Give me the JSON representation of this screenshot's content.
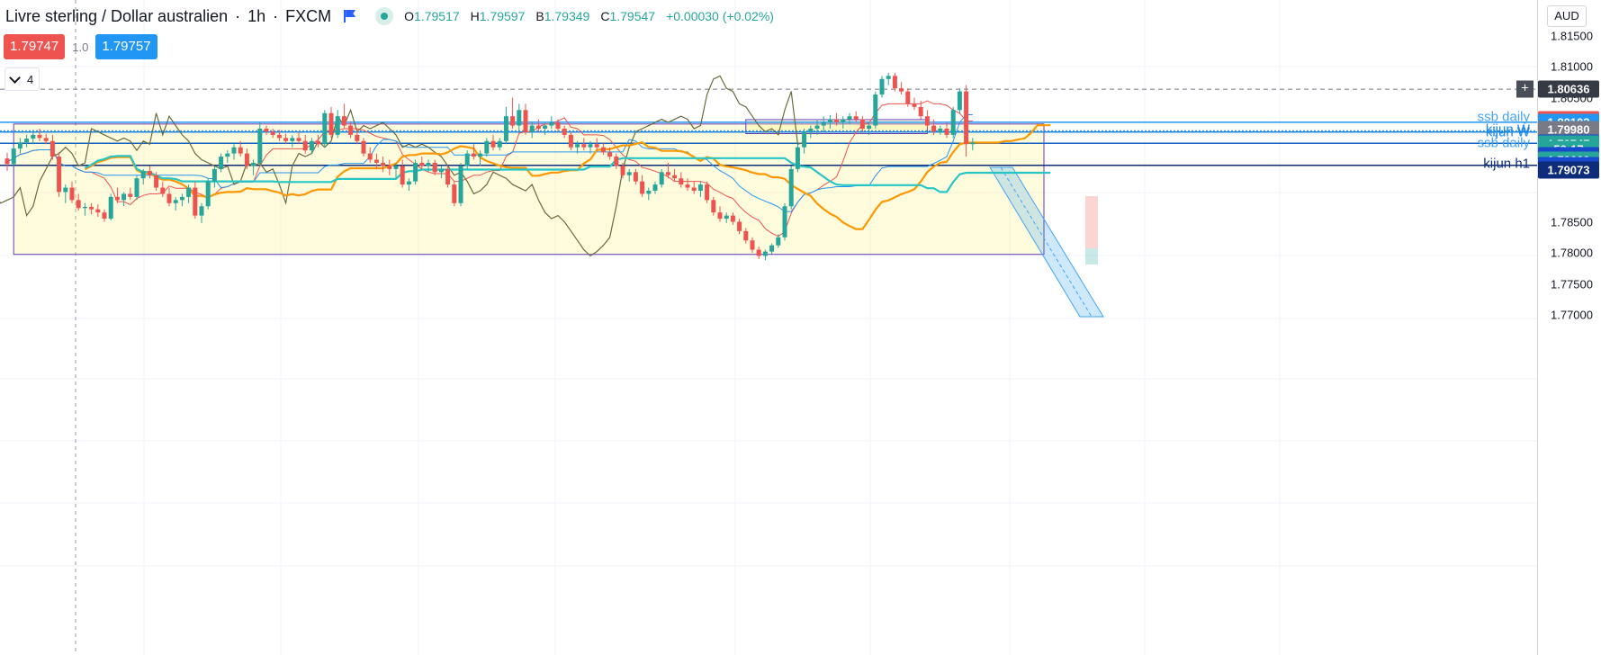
{
  "header": {
    "symbol": "Livre sterling / Dollar australien",
    "timeframe": "1h",
    "exchange": "FXCM",
    "open_label": "O",
    "open": "1.79517",
    "high_label": "H",
    "high": "1.79597",
    "low_label": "B",
    "low": "1.79349",
    "close_label": "C",
    "close": "1.79547",
    "change": "+0.00030 (+0.02%)"
  },
  "trade": {
    "sell_price": "1.79747",
    "spread": "1.0",
    "buy_price": "1.79757"
  },
  "indicators_toggle": {
    "count": "4"
  },
  "price_axis": {
    "currency": "AUD",
    "ticks": [
      "1.81500",
      "1.81000",
      "1.80500",
      "1.80000",
      "1.79500",
      "1.78500",
      "1.78000",
      "1.77500",
      "1.77000"
    ],
    "tags": [
      {
        "text": "1.80636",
        "price": 1.80636,
        "color": "#363a45"
      },
      {
        "text": "1.80139",
        "price": 1.80139,
        "color": "#ef5350"
      },
      {
        "text": "1.80103",
        "price": 1.80103,
        "color": "#2196f3"
      },
      {
        "text": "1.79980",
        "price": 1.7998,
        "color": "#787b86"
      },
      {
        "text": "1.79765",
        "price": 1.79765,
        "color": "#1848cc"
      },
      {
        "text": "1.79747",
        "price": 1.79747,
        "color": "#26a69a"
      },
      {
        "text": "50:17",
        "price": 1.79667,
        "color": "#26a69a"
      },
      {
        "text": "1.79712",
        "price": 1.7956,
        "color": "#1848cc"
      },
      {
        "text": "1.79660",
        "price": 1.7949,
        "color": "#26a69a"
      },
      {
        "text": "1.79520",
        "price": 1.7941,
        "color": "#1848cc"
      },
      {
        "text": "1.79073",
        "price": 1.7934,
        "color": "#0d2c7a"
      }
    ]
  },
  "line_labels": [
    {
      "text": "ssb daily",
      "price": 1.80185,
      "color": "#42a5f5"
    },
    {
      "text": "kijun W",
      "price": 1.79985,
      "color": "#1e88e5"
    },
    {
      "text": "kijun W",
      "price": 1.79945,
      "color": "#1e88e5"
    },
    {
      "text": "ssb daily",
      "price": 1.7977,
      "color": "#42a5f5"
    },
    {
      "text": "kijun h1",
      "price": 1.79435,
      "color": "#0d2c7a"
    }
  ],
  "chart_data": {
    "type": "candlestick",
    "timeframe": "1h",
    "ylim": [
      1.769,
      1.8156
    ],
    "horizontal_lines": [
      {
        "price": 1.80636,
        "color": "#787b86",
        "style": "dashed"
      },
      {
        "price": 1.80103,
        "color": "#2196f3",
        "style": "solid"
      },
      {
        "price": 1.79965,
        "color": "#1e88e5",
        "style": "dotted"
      },
      {
        "price": 1.79945,
        "color": "#1e88e5",
        "style": "solid"
      },
      {
        "price": 1.79765,
        "color": "#1565c0",
        "style": "solid"
      },
      {
        "price": 1.7941,
        "color": "#0d2c7a",
        "style": "solid"
      }
    ],
    "rectangles": [
      {
        "from": 1,
        "to": 160,
        "top": 1.80075,
        "bottom": 1.77975
      },
      {
        "from": 114,
        "to": 142,
        "top": 1.80145,
        "bottom": 1.7992
      }
    ],
    "series_names": [
      "tenkan",
      "kijun",
      "chikou",
      "ssa",
      "ssb"
    ],
    "candles": [
      {
        "o": 1.7952,
        "h": 1.7961,
        "l": 1.7932,
        "c": 1.7943
      },
      {
        "o": 1.7943,
        "h": 1.7972,
        "l": 1.794,
        "c": 1.7968
      },
      {
        "o": 1.7968,
        "h": 1.7985,
        "l": 1.796,
        "c": 1.7978
      },
      {
        "o": 1.7978,
        "h": 1.799,
        "l": 1.797,
        "c": 1.7984
      },
      {
        "o": 1.7984,
        "h": 1.7998,
        "l": 1.7975,
        "c": 1.799
      },
      {
        "o": 1.799,
        "h": 1.8,
        "l": 1.798,
        "c": 1.7985
      },
      {
        "o": 1.7985,
        "h": 1.7992,
        "l": 1.7975,
        "c": 1.798
      },
      {
        "o": 1.798,
        "h": 1.799,
        "l": 1.795,
        "c": 1.7955
      },
      {
        "o": 1.7955,
        "h": 1.7962,
        "l": 1.789,
        "c": 1.7898
      },
      {
        "o": 1.7898,
        "h": 1.791,
        "l": 1.788,
        "c": 1.7905
      },
      {
        "o": 1.7905,
        "h": 1.7915,
        "l": 1.788,
        "c": 1.7885
      },
      {
        "o": 1.7885,
        "h": 1.7895,
        "l": 1.7868,
        "c": 1.7872
      },
      {
        "o": 1.7872,
        "h": 1.788,
        "l": 1.786,
        "c": 1.7874
      },
      {
        "o": 1.7874,
        "h": 1.788,
        "l": 1.7862,
        "c": 1.787
      },
      {
        "o": 1.787,
        "h": 1.7878,
        "l": 1.7858,
        "c": 1.7865
      },
      {
        "o": 1.7865,
        "h": 1.787,
        "l": 1.785,
        "c": 1.7855
      },
      {
        "o": 1.7855,
        "h": 1.7895,
        "l": 1.7852,
        "c": 1.789
      },
      {
        "o": 1.789,
        "h": 1.7905,
        "l": 1.788,
        "c": 1.7885
      },
      {
        "o": 1.7885,
        "h": 1.7898,
        "l": 1.7875,
        "c": 1.7895
      },
      {
        "o": 1.7895,
        "h": 1.7905,
        "l": 1.7885,
        "c": 1.789
      },
      {
        "o": 1.789,
        "h": 1.7925,
        "l": 1.7885,
        "c": 1.792
      },
      {
        "o": 1.792,
        "h": 1.7935,
        "l": 1.791,
        "c": 1.7932
      },
      {
        "o": 1.7932,
        "h": 1.794,
        "l": 1.792,
        "c": 1.7925
      },
      {
        "o": 1.7925,
        "h": 1.793,
        "l": 1.79,
        "c": 1.7905
      },
      {
        "o": 1.7905,
        "h": 1.7915,
        "l": 1.789,
        "c": 1.7895
      },
      {
        "o": 1.7895,
        "h": 1.7905,
        "l": 1.7875,
        "c": 1.788
      },
      {
        "o": 1.788,
        "h": 1.789,
        "l": 1.7868,
        "c": 1.7885
      },
      {
        "o": 1.7885,
        "h": 1.7895,
        "l": 1.7875,
        "c": 1.789
      },
      {
        "o": 1.789,
        "h": 1.791,
        "l": 1.788,
        "c": 1.7905
      },
      {
        "o": 1.7905,
        "h": 1.7915,
        "l": 1.7855,
        "c": 1.786
      },
      {
        "o": 1.786,
        "h": 1.788,
        "l": 1.7848,
        "c": 1.7875
      },
      {
        "o": 1.7875,
        "h": 1.792,
        "l": 1.787,
        "c": 1.7915
      },
      {
        "o": 1.7915,
        "h": 1.794,
        "l": 1.7905,
        "c": 1.7935
      },
      {
        "o": 1.7935,
        "h": 1.796,
        "l": 1.793,
        "c": 1.7955
      },
      {
        "o": 1.7955,
        "h": 1.7965,
        "l": 1.7945,
        "c": 1.796
      },
      {
        "o": 1.796,
        "h": 1.7975,
        "l": 1.795,
        "c": 1.797
      },
      {
        "o": 1.797,
        "h": 1.798,
        "l": 1.7955,
        "c": 1.796
      },
      {
        "o": 1.796,
        "h": 1.7968,
        "l": 1.7935,
        "c": 1.794
      },
      {
        "o": 1.794,
        "h": 1.795,
        "l": 1.7925,
        "c": 1.7945
      },
      {
        "o": 1.7945,
        "h": 1.801,
        "l": 1.794,
        "c": 1.8
      },
      {
        "o": 1.8,
        "h": 1.8005,
        "l": 1.799,
        "c": 1.7995
      },
      {
        "o": 1.7995,
        "h": 1.8,
        "l": 1.7985,
        "c": 1.799
      },
      {
        "o": 1.799,
        "h": 1.7998,
        "l": 1.798,
        "c": 1.7985
      },
      {
        "o": 1.7985,
        "h": 1.7992,
        "l": 1.7975,
        "c": 1.798
      },
      {
        "o": 1.798,
        "h": 1.799,
        "l": 1.797,
        "c": 1.7985
      },
      {
        "o": 1.7985,
        "h": 1.7995,
        "l": 1.7975,
        "c": 1.798
      },
      {
        "o": 1.798,
        "h": 1.799,
        "l": 1.796,
        "c": 1.7965
      },
      {
        "o": 1.7965,
        "h": 1.7985,
        "l": 1.796,
        "c": 1.798
      },
      {
        "o": 1.798,
        "h": 1.799,
        "l": 1.797,
        "c": 1.7975
      },
      {
        "o": 1.7975,
        "h": 1.803,
        "l": 1.797,
        "c": 1.8025
      },
      {
        "o": 1.8025,
        "h": 1.8035,
        "l": 1.7985,
        "c": 1.799
      },
      {
        "o": 1.799,
        "h": 1.803,
        "l": 1.7985,
        "c": 1.802
      },
      {
        "o": 1.802,
        "h": 1.804,
        "l": 1.8,
        "c": 1.8005
      },
      {
        "o": 1.8005,
        "h": 1.8012,
        "l": 1.7985,
        "c": 1.799
      },
      {
        "o": 1.799,
        "h": 1.8,
        "l": 1.7975,
        "c": 1.798
      },
      {
        "o": 1.798,
        "h": 1.7985,
        "l": 1.7955,
        "c": 1.796
      },
      {
        "o": 1.796,
        "h": 1.797,
        "l": 1.7945,
        "c": 1.795
      },
      {
        "o": 1.795,
        "h": 1.796,
        "l": 1.7935,
        "c": 1.7945
      },
      {
        "o": 1.7945,
        "h": 1.7955,
        "l": 1.793,
        "c": 1.794
      },
      {
        "o": 1.794,
        "h": 1.795,
        "l": 1.7925,
        "c": 1.7935
      },
      {
        "o": 1.7935,
        "h": 1.7945,
        "l": 1.792,
        "c": 1.794
      },
      {
        "o": 1.794,
        "h": 1.795,
        "l": 1.7905,
        "c": 1.791
      },
      {
        "o": 1.791,
        "h": 1.792,
        "l": 1.79,
        "c": 1.7915
      },
      {
        "o": 1.7915,
        "h": 1.795,
        "l": 1.791,
        "c": 1.7945
      },
      {
        "o": 1.7945,
        "h": 1.7955,
        "l": 1.7935,
        "c": 1.794
      },
      {
        "o": 1.794,
        "h": 1.795,
        "l": 1.793,
        "c": 1.7945
      },
      {
        "o": 1.7945,
        "h": 1.795,
        "l": 1.7925,
        "c": 1.793
      },
      {
        "o": 1.793,
        "h": 1.794,
        "l": 1.792,
        "c": 1.7935
      },
      {
        "o": 1.7935,
        "h": 1.794,
        "l": 1.7905,
        "c": 1.791
      },
      {
        "o": 1.791,
        "h": 1.7915,
        "l": 1.7875,
        "c": 1.788
      },
      {
        "o": 1.788,
        "h": 1.7945,
        "l": 1.7875,
        "c": 1.794
      },
      {
        "o": 1.794,
        "h": 1.7965,
        "l": 1.7935,
        "c": 1.796
      },
      {
        "o": 1.796,
        "h": 1.7975,
        "l": 1.795,
        "c": 1.7955
      },
      {
        "o": 1.7955,
        "h": 1.7965,
        "l": 1.794,
        "c": 1.796
      },
      {
        "o": 1.796,
        "h": 1.7985,
        "l": 1.7955,
        "c": 1.798
      },
      {
        "o": 1.798,
        "h": 1.799,
        "l": 1.7965,
        "c": 1.797
      },
      {
        "o": 1.797,
        "h": 1.7985,
        "l": 1.7965,
        "c": 1.798
      },
      {
        "o": 1.798,
        "h": 1.8035,
        "l": 1.7975,
        "c": 1.802
      },
      {
        "o": 1.802,
        "h": 1.805,
        "l": 1.8,
        "c": 1.8005
      },
      {
        "o": 1.8005,
        "h": 1.804,
        "l": 1.7995,
        "c": 1.803
      },
      {
        "o": 1.803,
        "h": 1.804,
        "l": 1.799,
        "c": 1.7995
      },
      {
        "o": 1.7995,
        "h": 1.801,
        "l": 1.7985,
        "c": 1.8005
      },
      {
        "o": 1.8005,
        "h": 1.8015,
        "l": 1.7995,
        "c": 1.8
      },
      {
        "o": 1.8,
        "h": 1.801,
        "l": 1.799,
        "c": 1.8005
      },
      {
        "o": 1.8005,
        "h": 1.802,
        "l": 1.8,
        "c": 1.801
      },
      {
        "o": 1.801,
        "h": 1.8015,
        "l": 1.7995,
        "c": 1.8
      },
      {
        "o": 1.8,
        "h": 1.8005,
        "l": 1.7985,
        "c": 1.799
      },
      {
        "o": 1.799,
        "h": 1.7995,
        "l": 1.7965,
        "c": 1.797
      },
      {
        "o": 1.797,
        "h": 1.798,
        "l": 1.796,
        "c": 1.7975
      },
      {
        "o": 1.7975,
        "h": 1.7985,
        "l": 1.7965,
        "c": 1.797
      },
      {
        "o": 1.797,
        "h": 1.798,
        "l": 1.796,
        "c": 1.7975
      },
      {
        "o": 1.7975,
        "h": 1.7985,
        "l": 1.7965,
        "c": 1.797
      },
      {
        "o": 1.797,
        "h": 1.7978,
        "l": 1.7958,
        "c": 1.7962
      },
      {
        "o": 1.7962,
        "h": 1.797,
        "l": 1.795,
        "c": 1.7955
      },
      {
        "o": 1.7955,
        "h": 1.796,
        "l": 1.7935,
        "c": 1.794
      },
      {
        "o": 1.794,
        "h": 1.7945,
        "l": 1.792,
        "c": 1.7925
      },
      {
        "o": 1.7925,
        "h": 1.7935,
        "l": 1.7915,
        "c": 1.793
      },
      {
        "o": 1.793,
        "h": 1.7935,
        "l": 1.791,
        "c": 1.7915
      },
      {
        "o": 1.7915,
        "h": 1.7925,
        "l": 1.789,
        "c": 1.7895
      },
      {
        "o": 1.7895,
        "h": 1.7905,
        "l": 1.7885,
        "c": 1.79
      },
      {
        "o": 1.79,
        "h": 1.7915,
        "l": 1.7895,
        "c": 1.791
      },
      {
        "o": 1.791,
        "h": 1.7935,
        "l": 1.7905,
        "c": 1.793
      },
      {
        "o": 1.793,
        "h": 1.7945,
        "l": 1.792,
        "c": 1.7925
      },
      {
        "o": 1.7925,
        "h": 1.7935,
        "l": 1.7915,
        "c": 1.792
      },
      {
        "o": 1.792,
        "h": 1.793,
        "l": 1.7905,
        "c": 1.791
      },
      {
        "o": 1.791,
        "h": 1.792,
        "l": 1.79,
        "c": 1.7905
      },
      {
        "o": 1.7905,
        "h": 1.7915,
        "l": 1.7895,
        "c": 1.79
      },
      {
        "o": 1.79,
        "h": 1.7915,
        "l": 1.789,
        "c": 1.791
      },
      {
        "o": 1.791,
        "h": 1.7915,
        "l": 1.788,
        "c": 1.7885
      },
      {
        "o": 1.7885,
        "h": 1.789,
        "l": 1.786,
        "c": 1.7865
      },
      {
        "o": 1.7865,
        "h": 1.7875,
        "l": 1.785,
        "c": 1.7855
      },
      {
        "o": 1.7855,
        "h": 1.7865,
        "l": 1.7848,
        "c": 1.786
      },
      {
        "o": 1.786,
        "h": 1.7865,
        "l": 1.7845,
        "c": 1.785
      },
      {
        "o": 1.785,
        "h": 1.7855,
        "l": 1.783,
        "c": 1.7835
      },
      {
        "o": 1.7835,
        "h": 1.784,
        "l": 1.7815,
        "c": 1.782
      },
      {
        "o": 1.782,
        "h": 1.7825,
        "l": 1.78,
        "c": 1.7805
      },
      {
        "o": 1.7805,
        "h": 1.781,
        "l": 1.779,
        "c": 1.7795
      },
      {
        "o": 1.7795,
        "h": 1.7805,
        "l": 1.7788,
        "c": 1.7802
      },
      {
        "o": 1.7802,
        "h": 1.7815,
        "l": 1.7798,
        "c": 1.7812
      },
      {
        "o": 1.7812,
        "h": 1.783,
        "l": 1.7808,
        "c": 1.7825
      },
      {
        "o": 1.7825,
        "h": 1.788,
        "l": 1.782,
        "c": 1.7875
      },
      {
        "o": 1.7875,
        "h": 1.794,
        "l": 1.787,
        "c": 1.7935
      },
      {
        "o": 1.7935,
        "h": 1.7975,
        "l": 1.793,
        "c": 1.797
      },
      {
        "o": 1.797,
        "h": 1.8,
        "l": 1.796,
        "c": 1.7995
      },
      {
        "o": 1.7995,
        "h": 1.8005,
        "l": 1.7985,
        "c": 1.8
      },
      {
        "o": 1.8,
        "h": 1.8015,
        "l": 1.799,
        "c": 1.8005
      },
      {
        "o": 1.8005,
        "h": 1.802,
        "l": 1.7995,
        "c": 1.801
      },
      {
        "o": 1.801,
        "h": 1.8022,
        "l": 1.8,
        "c": 1.8015
      },
      {
        "o": 1.8015,
        "h": 1.8025,
        "l": 1.8005,
        "c": 1.801
      },
      {
        "o": 1.801,
        "h": 1.802,
        "l": 1.8,
        "c": 1.8015
      },
      {
        "o": 1.8015,
        "h": 1.8025,
        "l": 1.8008,
        "c": 1.802
      },
      {
        "o": 1.802,
        "h": 1.8028,
        "l": 1.801,
        "c": 1.8015
      },
      {
        "o": 1.8015,
        "h": 1.802,
        "l": 1.7995,
        "c": 1.8
      },
      {
        "o": 1.8,
        "h": 1.801,
        "l": 1.799,
        "c": 1.8005
      },
      {
        "o": 1.8005,
        "h": 1.806,
        "l": 1.8,
        "c": 1.8055
      },
      {
        "o": 1.8055,
        "h": 1.8085,
        "l": 1.805,
        "c": 1.808
      },
      {
        "o": 1.808,
        "h": 1.809,
        "l": 1.807,
        "c": 1.8085
      },
      {
        "o": 1.8085,
        "h": 1.809,
        "l": 1.806,
        "c": 1.8065
      },
      {
        "o": 1.8065,
        "h": 1.8075,
        "l": 1.8055,
        "c": 1.806
      },
      {
        "o": 1.806,
        "h": 1.8065,
        "l": 1.8035,
        "c": 1.804
      },
      {
        "o": 1.804,
        "h": 1.805,
        "l": 1.803,
        "c": 1.8035
      },
      {
        "o": 1.8035,
        "h": 1.8045,
        "l": 1.8015,
        "c": 1.802
      },
      {
        "o": 1.802,
        "h": 1.803,
        "l": 1.8,
        "c": 1.8005
      },
      {
        "o": 1.8005,
        "h": 1.8015,
        "l": 1.799,
        "c": 1.7995
      },
      {
        "o": 1.7995,
        "h": 1.8005,
        "l": 1.799,
        "c": 1.8
      },
      {
        "o": 1.8,
        "h": 1.801,
        "l": 1.7985,
        "c": 1.799
      },
      {
        "o": 1.799,
        "h": 1.8035,
        "l": 1.7985,
        "c": 1.803
      },
      {
        "o": 1.803,
        "h": 1.8065,
        "l": 1.8025,
        "c": 1.806
      },
      {
        "o": 1.806,
        "h": 1.807,
        "l": 1.7955,
        "c": 1.7975
      },
      {
        "o": 1.7975,
        "h": 1.7985,
        "l": 1.7965,
        "c": 1.7978
      }
    ]
  }
}
